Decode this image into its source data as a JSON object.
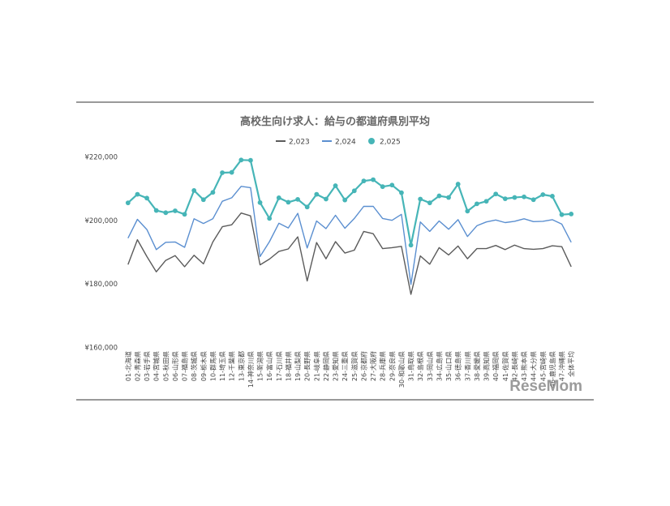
{
  "chart_data": {
    "type": "line",
    "title": "高校生向け求人：給与の都道府県別平均",
    "xlabel": "",
    "ylabel": "",
    "ylim": [
      160000,
      220000
    ],
    "yticks": [
      "¥220,000",
      "¥200,000",
      "¥180,000",
      "¥160,000"
    ],
    "ytick_values": [
      220000,
      200000,
      180000,
      160000
    ],
    "legend_position": "top",
    "grid": false,
    "categories": [
      "01-北海道",
      "02-青森県",
      "03-岩手県",
      "04-宮城県",
      "05-秋田県",
      "06-山形県",
      "07-福島県",
      "08-茨城県",
      "09-栃木県",
      "10-群馬県",
      "11-埼玉県",
      "12-千葉県",
      "13-東京都",
      "14-神奈川県",
      "15-新潟県",
      "16-富山県",
      "17-石川県",
      "18-福井県",
      "19-山梨県",
      "20-長野県",
      "21-岐阜県",
      "22-静岡県",
      "23-愛知県",
      "24-三重県",
      "25-滋賀県",
      "26-京都府",
      "27-大阪府",
      "28-兵庫県",
      "29-奈良県",
      "30-和歌山県",
      "31-鳥取県",
      "32-島根県",
      "33-岡山県",
      "34-広島県",
      "35-山口県",
      "36-徳島県",
      "37-香川県",
      "38-愛媛県",
      "39-高知県",
      "40-福岡県",
      "41-佐賀県",
      "42-長崎県",
      "43-熊本県",
      "44-大分県",
      "45-宮崎県",
      "46-鹿児島県",
      "47-沖縄県",
      "全体平均"
    ],
    "series": [
      {
        "name": "2,023",
        "color": "#5b5b5b",
        "values": [
          186000,
          193800,
          188500,
          183700,
          187300,
          188800,
          185300,
          188900,
          186200,
          193100,
          197900,
          198500,
          202200,
          201300,
          185900,
          187700,
          190100,
          190900,
          194700,
          180800,
          192900,
          187800,
          193200,
          189600,
          190500,
          196400,
          195700,
          191000,
          191300,
          191700,
          176600,
          188700,
          186100,
          191300,
          189000,
          191800,
          187800,
          191000,
          191000,
          192000,
          190700,
          192100,
          191000,
          190800,
          191000,
          191900,
          191600,
          185300
        ]
      },
      {
        "name": "2,024",
        "color": "#5b8fd0",
        "values": [
          194300,
          200200,
          197000,
          190700,
          193000,
          193100,
          191400,
          200400,
          198900,
          200400,
          205900,
          207000,
          210600,
          210200,
          188500,
          193200,
          199000,
          197500,
          202100,
          191200,
          199700,
          197300,
          201500,
          197400,
          200500,
          204300,
          204300,
          200500,
          199900,
          201800,
          179700,
          199400,
          196400,
          199700,
          197100,
          200100,
          194800,
          198200,
          199400,
          200000,
          199200,
          199600,
          200400,
          199500,
          199600,
          200100,
          198700,
          193000
        ]
      },
      {
        "name": "2,025",
        "color": "#46b5b7",
        "values": [
          205400,
          208100,
          206900,
          203000,
          202300,
          202900,
          201800,
          209300,
          206400,
          208700,
          214900,
          215000,
          218900,
          218800,
          205500,
          200500,
          207000,
          205600,
          206500,
          204100,
          208100,
          206600,
          210800,
          206300,
          209200,
          212300,
          212700,
          210500,
          211000,
          208600,
          192100,
          206600,
          205400,
          207600,
          207100,
          211300,
          202800,
          205100,
          205900,
          208200,
          206700,
          207100,
          207300,
          206400,
          208000,
          207500,
          201700,
          201900
        ]
      }
    ]
  },
  "watermark": "ReseMom"
}
